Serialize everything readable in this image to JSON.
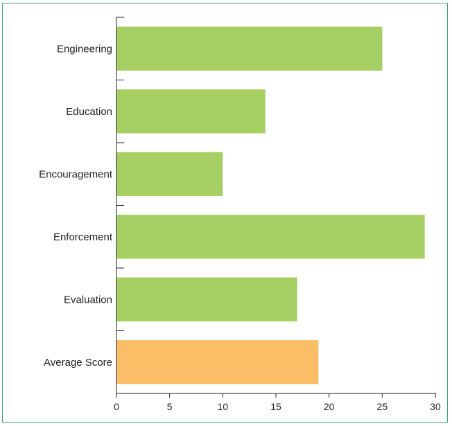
{
  "chart_data": {
    "type": "bar",
    "orientation": "horizontal",
    "categories": [
      "Engineering",
      "Education",
      "Encouragement",
      "Enforcement",
      "Evaluation",
      "Average Score"
    ],
    "values": [
      25,
      14,
      10,
      29,
      17,
      19
    ],
    "highlight": [
      "Average Score"
    ],
    "xlim": [
      0,
      30
    ],
    "xticks": [
      "0",
      "5",
      "10",
      "15",
      "20",
      "25",
      "30"
    ],
    "title": "",
    "xlabel": "",
    "ylabel": "",
    "grid": false,
    "colors": {
      "bar": "#a5cf62",
      "highlight": "#fbbd66",
      "frame": "#3aa86b",
      "axis": "#222222"
    }
  }
}
